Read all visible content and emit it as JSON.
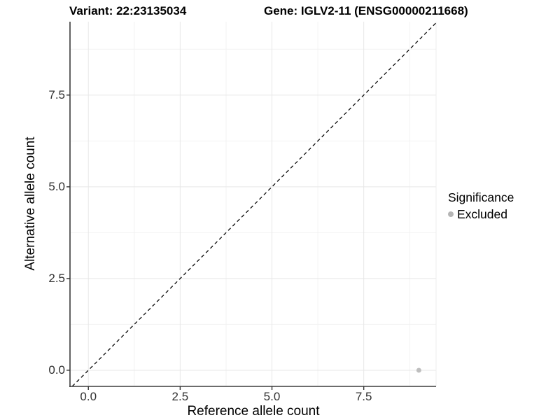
{
  "titles": {
    "left": "Variant: 22:23135034",
    "right": "Gene: IGLV2-11 (ENSG00000211668)"
  },
  "chart_data": {
    "type": "scatter",
    "title": "Variant: 22:23135034 — Gene: IGLV2-11 (ENSG00000211668)",
    "xlabel": "Reference allele count",
    "ylabel": "Alternative allele count",
    "xlim": [
      -0.5,
      9.47
    ],
    "ylim": [
      -0.44,
      9.5
    ],
    "x_ticks": {
      "values": [
        0,
        2.5,
        5,
        7.5
      ],
      "labels": [
        "0.0",
        "2.5",
        "5.0",
        "7.5"
      ]
    },
    "y_ticks": {
      "values": [
        0,
        2.5,
        5,
        7.5
      ],
      "labels": [
        "0.0",
        "2.5",
        "5.0",
        "7.5"
      ]
    },
    "minor_breaks": [
      1.25,
      3.75,
      6.25,
      8.75
    ],
    "grid": true,
    "points": [
      {
        "x": 9,
        "y": 0,
        "series": "Excluded",
        "color": "#bebebe",
        "radius": 3.5
      }
    ],
    "reference_line": {
      "slope": 1,
      "intercept": 0,
      "style": "dashed",
      "color": "#0a0a0a"
    },
    "legend": {
      "title": "Significance",
      "position": "right",
      "items": [
        {
          "label": "Excluded",
          "color": "#b5b5b5"
        }
      ]
    }
  },
  "colors": {
    "grid_major": "#e7e7e7",
    "grid_minor": "#f2f2f2",
    "panel_edge": "#ececec",
    "axis_line": "#3c3c3c",
    "tick_mark": "#333333"
  }
}
